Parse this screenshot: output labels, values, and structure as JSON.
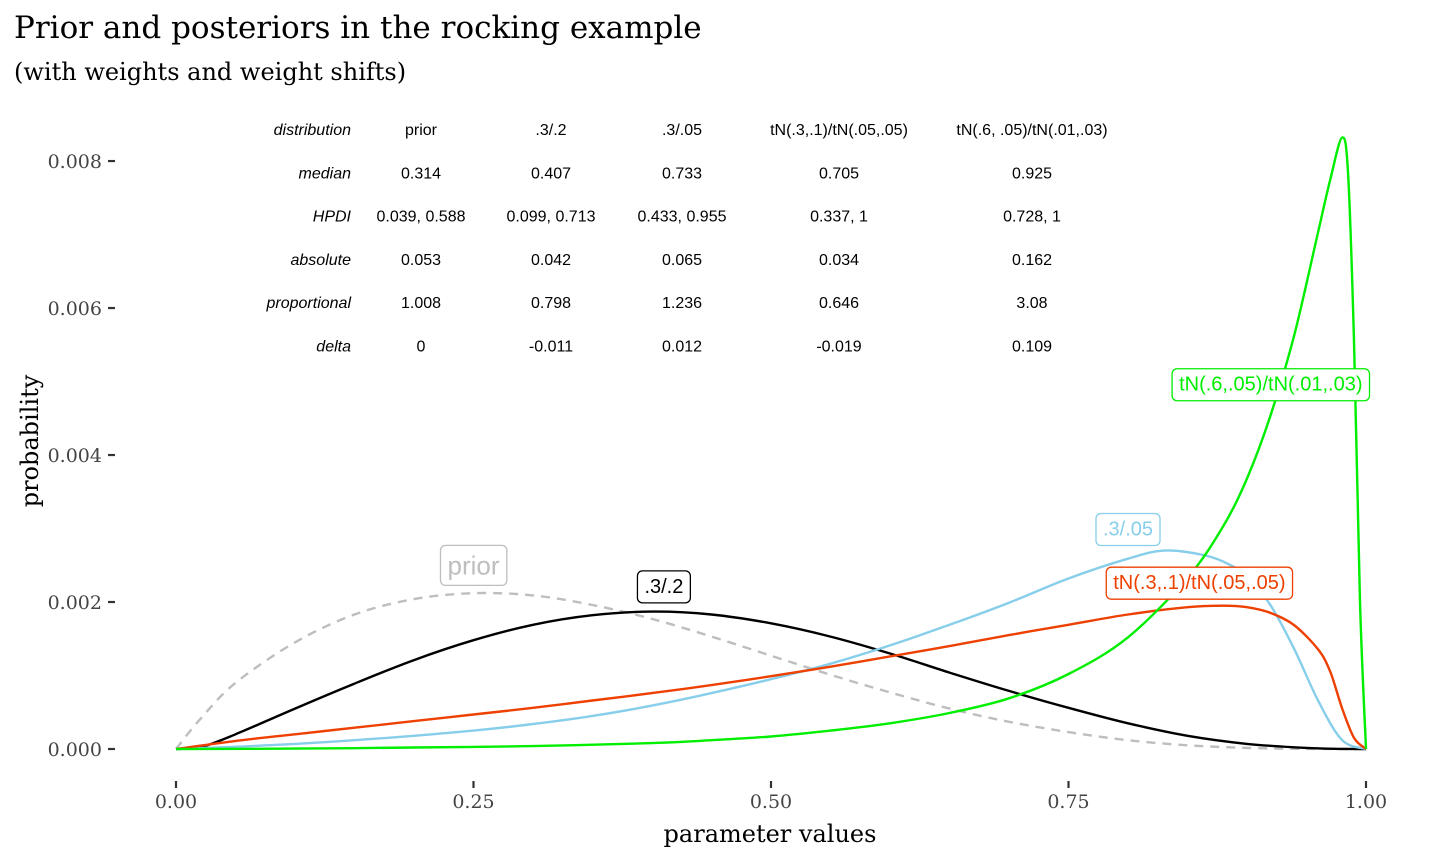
{
  "chart_data": {
    "type": "line",
    "title": "Prior and  posteriors in the rocking example",
    "subtitle": "(with weights and weight shifts)",
    "xlabel": "parameter values",
    "ylabel": "probability",
    "xlim": [
      0,
      1
    ],
    "ylim": [
      0,
      0.0083
    ],
    "x_ticks": [
      {
        "value": 0.0,
        "label": "0.00"
      },
      {
        "value": 0.25,
        "label": "0.25"
      },
      {
        "value": 0.5,
        "label": "0.50"
      },
      {
        "value": 0.75,
        "label": "0.75"
      },
      {
        "value": 1.0,
        "label": "1.00"
      }
    ],
    "y_ticks": [
      {
        "value": 0.0,
        "label": "0.000"
      },
      {
        "value": 0.002,
        "label": "0.002"
      },
      {
        "value": 0.004,
        "label": "0.004"
      },
      {
        "value": 0.006,
        "label": "0.006"
      },
      {
        "value": 0.008,
        "label": "0.008"
      }
    ],
    "grid": false,
    "legend": "none",
    "series": [
      {
        "name": "prior",
        "color": "#bebebe",
        "dashed": true,
        "label_at": [
          0.25,
          0.0025
        ],
        "x": [
          0,
          0.02,
          0.05,
          0.1,
          0.15,
          0.2,
          0.25,
          0.3,
          0.35,
          0.4,
          0.45,
          0.5,
          0.55,
          0.6,
          0.65,
          0.7,
          0.75,
          0.8,
          0.85,
          0.9,
          0.95,
          1
        ],
        "values": [
          0,
          0.0004,
          0.0009,
          0.00145,
          0.00183,
          0.00204,
          0.00212,
          0.00209,
          0.00196,
          0.00177,
          0.00153,
          0.00127,
          0.00101,
          0.00077,
          0.00055,
          0.00037,
          0.00023,
          0.00012,
          5e-05,
          1.5e-05,
          2e-06,
          0
        ]
      },
      {
        "name": ".3/.2",
        "color": "#000000",
        "dashed": false,
        "label_at": [
          0.41,
          0.00222
        ],
        "x": [
          0,
          0.02,
          0.05,
          0.1,
          0.15,
          0.2,
          0.25,
          0.3,
          0.35,
          0.4,
          0.45,
          0.5,
          0.55,
          0.6,
          0.65,
          0.7,
          0.75,
          0.8,
          0.85,
          0.9,
          0.95,
          0.98,
          1
        ],
        "values": [
          0,
          2e-05,
          0.0002,
          0.00055,
          0.00089,
          0.00121,
          0.00148,
          0.00169,
          0.00182,
          0.00187,
          0.00183,
          0.00171,
          0.00153,
          0.0013,
          0.00104,
          0.00079,
          0.00056,
          0.00035,
          0.00018,
          7e-05,
          1.5e-05,
          2e-06,
          0
        ]
      },
      {
        "name": ".3/.05",
        "color": "#87ceeb",
        "dashed": false,
        "label_at": [
          0.8,
          0.003
        ],
        "x": [
          0,
          0.05,
          0.1,
          0.15,
          0.2,
          0.25,
          0.3,
          0.35,
          0.4,
          0.45,
          0.5,
          0.55,
          0.6,
          0.65,
          0.7,
          0.75,
          0.8,
          0.83,
          0.86,
          0.88,
          0.9,
          0.92,
          0.94,
          0.96,
          0.98,
          1
        ],
        "values": [
          0,
          3e-05,
          7e-05,
          0.00012,
          0.00018,
          0.00025,
          0.00034,
          0.00045,
          0.00059,
          0.00076,
          0.00095,
          0.00116,
          0.00141,
          0.00169,
          0.00199,
          0.00232,
          0.00259,
          0.0027,
          0.00265,
          0.00255,
          0.00235,
          0.00195,
          0.00135,
          0.00065,
          0.00012,
          0
        ]
      },
      {
        "name": "tN(.3,.1)/tN(.05,.05)",
        "color": "#ee4000",
        "dashed": false,
        "label_at": [
          0.86,
          0.00227
        ],
        "x": [
          0,
          0.05,
          0.1,
          0.15,
          0.2,
          0.25,
          0.3,
          0.35,
          0.4,
          0.45,
          0.5,
          0.55,
          0.6,
          0.65,
          0.7,
          0.75,
          0.8,
          0.85,
          0.88,
          0.9,
          0.92,
          0.94,
          0.96,
          0.97,
          0.98,
          0.99,
          1
        ],
        "values": [
          0,
          0.00011,
          0.0002,
          0.00029,
          0.00038,
          0.00047,
          0.00056,
          0.00066,
          0.00076,
          0.00087,
          0.00099,
          0.00112,
          0.00126,
          0.0014,
          0.00155,
          0.00169,
          0.00183,
          0.00193,
          0.00195,
          0.00193,
          0.00185,
          0.00168,
          0.00135,
          0.00105,
          0.00055,
          0.00015,
          0
        ]
      },
      {
        "name": "tN(.6,.05)/tN(.01,.03)",
        "color": "#00ee00",
        "dashed": false,
        "label_at": [
          0.92,
          0.00497
        ],
        "x": [
          0,
          0.1,
          0.2,
          0.3,
          0.4,
          0.45,
          0.5,
          0.55,
          0.6,
          0.65,
          0.7,
          0.75,
          0.8,
          0.85,
          0.88,
          0.9,
          0.92,
          0.94,
          0.96,
          0.97,
          0.98,
          0.985,
          0.99,
          0.995,
          1
        ],
        "values": [
          0,
          5e-06,
          2e-05,
          4e-05,
          8e-05,
          0.00012,
          0.00017,
          0.00025,
          0.00035,
          0.00049,
          0.00069,
          0.00102,
          0.00152,
          0.00233,
          0.00303,
          0.00368,
          0.00455,
          0.00565,
          0.00705,
          0.00775,
          0.00832,
          0.0078,
          0.0055,
          0.002,
          0
        ]
      }
    ]
  },
  "table": {
    "columns": [
      "prior",
      ".3/.2",
      ".3/.05",
      "tN(.3,.1)/tN(.05,.05)",
      "tN(.6, .05)/tN(.01,.03)"
    ],
    "column_header_label": "distribution",
    "rows": [
      {
        "label": "median",
        "values": [
          "0.314",
          "0.407",
          "0.733",
          "0.705",
          "0.925"
        ]
      },
      {
        "label": "HPDI",
        "values": [
          "0.039, 0.588",
          "0.099, 0.713",
          "0.433, 0.955",
          "0.337, 1",
          "0.728, 1"
        ]
      },
      {
        "label": "absolute",
        "values": [
          "0.053",
          "0.042",
          "0.065",
          "0.034",
          "0.162"
        ]
      },
      {
        "label": "proportional",
        "values": [
          "1.008",
          "0.798",
          "1.236",
          "0.646",
          "3.08"
        ]
      },
      {
        "label": "delta",
        "values": [
          "0",
          "-0.011",
          "0.012",
          "-0.019",
          "0.109"
        ]
      }
    ]
  }
}
